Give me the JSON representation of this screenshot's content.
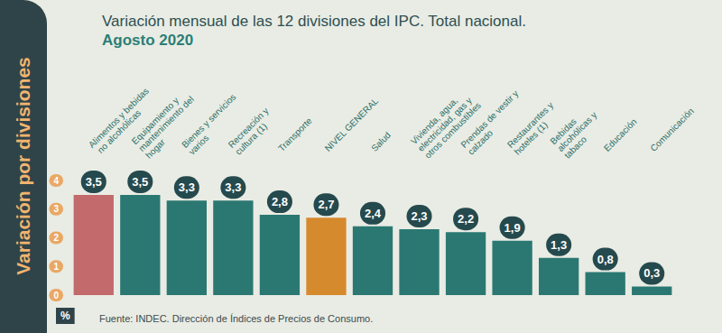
{
  "chart_data": {
    "type": "bar",
    "title": "Variación mensual de las 12 divisiones del IPC. Total nacional.",
    "subtitle": "Agosto 2020",
    "ylabel": "Variación por divisiones",
    "annotations": {
      "unit": "%",
      "source": "Fuente: INDEC. Dirección de Índices de Precios de Consumo."
    },
    "categories": [
      "Alimentos y bebidas no alcohólicas",
      "Equipamiento y mantenimiento del hogar",
      "Bienes y servicios varios",
      "Recreación y cultura (1)",
      "Transporte",
      "NIVEL GENERAL",
      "Salud",
      "Vivienda, agua, electricidad, gas y otros combustibles",
      "Prendas de vestir y calzado",
      "Restaurantes y hoteles (1)",
      "Bebidas alcohólicas y tabaco",
      "Educación",
      "Comunicación"
    ],
    "values": [
      3.5,
      3.5,
      3.3,
      3.3,
      2.8,
      2.7,
      2.4,
      2.3,
      2.2,
      1.9,
      1.3,
      0.8,
      0.3
    ],
    "value_labels": [
      "3,5",
      "3,5",
      "3,3",
      "3,3",
      "2,8",
      "2,7",
      "2,4",
      "2,3",
      "2,2",
      "1,9",
      "1,3",
      "0,8",
      "0,3"
    ],
    "colors": [
      "#c26a6c",
      "#2b7873",
      "#2b7873",
      "#2b7873",
      "#2b7873",
      "#d68a2e",
      "#2b7873",
      "#2b7873",
      "#2b7873",
      "#2b7873",
      "#2b7873",
      "#2b7873",
      "#2b7873"
    ],
    "ylim": [
      0,
      4
    ],
    "yticks": [
      0,
      1,
      2,
      3,
      4
    ],
    "grid": false,
    "data_labels": true
  }
}
